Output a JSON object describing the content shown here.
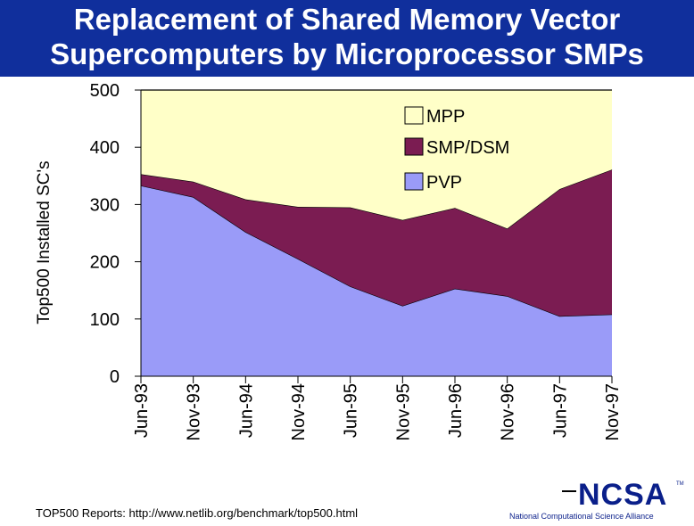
{
  "slide": {
    "title_line1": "Replacement of Shared Memory Vector",
    "title_line2": "Supercomputers by Microprocessor SMPs",
    "footer": "TOP500 Reports:  http://www.netlib.org/benchmark/top500.html",
    "org_name": "National Computational Science Alliance",
    "logo_text": "NCSA",
    "logo_tm": "TM"
  },
  "colors": {
    "title_bg": "#102f9c",
    "mpp": "#ffffc8",
    "smp": "#7b1c52",
    "pvp": "#9a9bf8"
  },
  "chart_data": {
    "type": "area",
    "stacked": true,
    "title": "",
    "xlabel": "",
    "ylabel": "Top500 Installed SC's",
    "ylim": [
      0,
      500
    ],
    "yticks": [
      0,
      100,
      200,
      300,
      400,
      500
    ],
    "categories": [
      "Jun-93",
      "Nov-93",
      "Jun-94",
      "Nov-94",
      "Jun-95",
      "Nov-95",
      "Jun-96",
      "Nov-96",
      "Jun-97",
      "Nov-97"
    ],
    "series": [
      {
        "name": "PVP",
        "values": [
          333,
          313,
          252,
          205,
          157,
          123,
          153,
          140,
          105,
          108
        ]
      },
      {
        "name": "SMP/DSM",
        "values": [
          20,
          27,
          57,
          91,
          138,
          150,
          141,
          118,
          222,
          253
        ]
      },
      {
        "name": "MPP",
        "values": [
          147,
          160,
          191,
          204,
          205,
          227,
          206,
          242,
          173,
          139
        ]
      }
    ],
    "legend": [
      "MPP",
      "SMP/DSM",
      "PVP"
    ],
    "legend_position": "top-right"
  }
}
